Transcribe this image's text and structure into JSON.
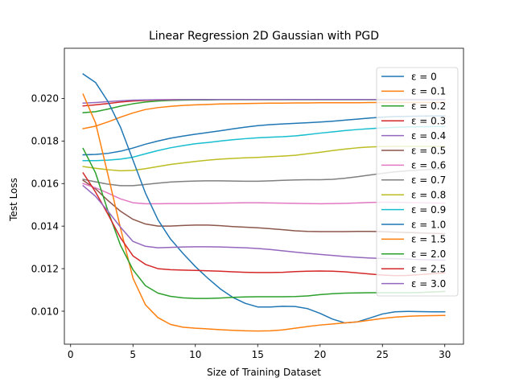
{
  "chart_data": {
    "type": "line",
    "title": "Linear Regression 2D Gaussian with PGD",
    "xlabel": "Size of Training Dataset",
    "ylabel": "Test Loss",
    "xlim": [
      -0.5,
      31.5
    ],
    "ylim": [
      0.00845,
      0.02236
    ],
    "xticks": [
      0,
      5,
      10,
      15,
      20,
      25,
      30
    ],
    "xtick_labels": [
      "0",
      "5",
      "10",
      "15",
      "20",
      "25",
      "30"
    ],
    "yticks": [
      0.01,
      0.012,
      0.014,
      0.016,
      0.018,
      0.02
    ],
    "ytick_labels": [
      "0.010",
      "0.012",
      "0.014",
      "0.016",
      "0.018",
      "0.020"
    ],
    "grid": false,
    "legend_position": "right",
    "x": [
      1,
      2,
      3,
      4,
      5,
      6,
      7,
      8,
      9,
      10,
      11,
      12,
      13,
      14,
      15,
      16,
      17,
      18,
      19,
      20,
      21,
      22,
      23,
      24,
      25,
      26,
      27,
      28,
      29,
      30
    ],
    "series": [
      {
        "name": "ε = 0",
        "color": "#1f77b4",
        "values": [
          0.01735,
          0.01737,
          0.01742,
          0.01752,
          0.01767,
          0.01785,
          0.018,
          0.01813,
          0.01823,
          0.01832,
          0.0184,
          0.01848,
          0.01857,
          0.01865,
          0.01872,
          0.01877,
          0.0188,
          0.01883,
          0.01886,
          0.01889,
          0.01893,
          0.01898,
          0.01903,
          0.01908,
          0.01912,
          0.01915,
          0.01916,
          0.01917,
          0.01918,
          0.01918
        ]
      },
      {
        "name": "ε = 0.1",
        "color": "#ff7f0e",
        "values": [
          0.01858,
          0.0187,
          0.0189,
          0.01912,
          0.01932,
          0.01948,
          0.01957,
          0.01963,
          0.01967,
          0.0197,
          0.01972,
          0.01974,
          0.01975,
          0.01976,
          0.01977,
          0.01978,
          0.01978,
          0.01979,
          0.01979,
          0.0198,
          0.0198,
          0.0198,
          0.0198,
          0.01981,
          0.01981,
          0.01981,
          0.01981,
          0.01981,
          0.01981,
          0.01982
        ]
      },
      {
        "name": "ε = 0.2",
        "color": "#2ca02c",
        "values": [
          0.01933,
          0.01938,
          0.0195,
          0.01964,
          0.01975,
          0.01983,
          0.01988,
          0.01991,
          0.01992,
          0.01993,
          0.01993,
          0.01994,
          0.01994,
          0.01994,
          0.01994,
          0.01994,
          0.01994,
          0.01994,
          0.01994,
          0.01994,
          0.01994,
          0.01994,
          0.01994,
          0.01994,
          0.01994,
          0.01994,
          0.01994,
          0.01994,
          0.01994,
          0.01994
        ]
      },
      {
        "name": "ε = 0.3",
        "color": "#d62728",
        "values": [
          0.01965,
          0.0197,
          0.01976,
          0.01983,
          0.01988,
          0.01991,
          0.01993,
          0.01994,
          0.01995,
          0.01995,
          0.01995,
          0.01995,
          0.01995,
          0.01995,
          0.01995,
          0.01995,
          0.01995,
          0.01995,
          0.01995,
          0.01995,
          0.01995,
          0.01995,
          0.01995,
          0.01995,
          0.01995,
          0.01995,
          0.01995,
          0.01995,
          0.01995,
          0.01995
        ]
      },
      {
        "name": "ε = 0.4",
        "color": "#9467bd",
        "values": [
          0.01978,
          0.01981,
          0.01985,
          0.01989,
          0.01992,
          0.01993,
          0.01994,
          0.01994,
          0.01995,
          0.01995,
          0.01995,
          0.01995,
          0.01995,
          0.01995,
          0.01995,
          0.01995,
          0.01995,
          0.01995,
          0.01995,
          0.01995,
          0.01995,
          0.01995,
          0.01995,
          0.01995,
          0.01995,
          0.01995,
          0.01995,
          0.01995,
          0.01995,
          0.01995
        ]
      },
      {
        "name": "ε = 0.5",
        "color": "#8c564b",
        "values": [
          0.01615,
          0.01575,
          0.0152,
          0.0147,
          0.01432,
          0.0141,
          0.014,
          0.014,
          0.01403,
          0.01405,
          0.01405,
          0.01402,
          0.01398,
          0.01395,
          0.01392,
          0.01388,
          0.01383,
          0.01378,
          0.01375,
          0.01374,
          0.01374,
          0.01374,
          0.01375,
          0.01375,
          0.01374,
          0.01372,
          0.0137,
          0.01368,
          0.01366,
          0.01365
        ]
      },
      {
        "name": "ε = 0.6",
        "color": "#e377c2",
        "values": [
          0.016,
          0.0158,
          0.01555,
          0.01528,
          0.0151,
          0.01505,
          0.01505,
          0.01506,
          0.01506,
          0.01506,
          0.01507,
          0.01508,
          0.01509,
          0.0151,
          0.0151,
          0.01509,
          0.01508,
          0.01507,
          0.01506,
          0.01505,
          0.01506,
          0.01507,
          0.01509,
          0.01511,
          0.01512,
          0.01512,
          0.01511,
          0.0151,
          0.01509,
          0.01508
        ]
      },
      {
        "name": "ε = 0.7",
        "color": "#7f7f7f",
        "values": [
          0.0162,
          0.01608,
          0.01597,
          0.0159,
          0.0159,
          0.01596,
          0.01602,
          0.01607,
          0.0161,
          0.01612,
          0.01613,
          0.01613,
          0.01612,
          0.01611,
          0.01611,
          0.01613,
          0.01615,
          0.01617,
          0.01618,
          0.01618,
          0.0162,
          0.01625,
          0.01632,
          0.0164,
          0.01648,
          0.01655,
          0.0166,
          0.01664,
          0.01667,
          0.01668
        ]
      },
      {
        "name": "ε = 0.8",
        "color": "#bcbd22",
        "values": [
          0.0168,
          0.01672,
          0.01665,
          0.0166,
          0.01662,
          0.0167,
          0.0168,
          0.0169,
          0.01697,
          0.01704,
          0.0171,
          0.01715,
          0.01718,
          0.01721,
          0.01723,
          0.01726,
          0.01729,
          0.01733,
          0.0174,
          0.01747,
          0.01755,
          0.01762,
          0.01768,
          0.01772,
          0.01774,
          0.01775,
          0.01775,
          0.01775,
          0.01775,
          0.01775
        ]
      },
      {
        "name": "ε = 0.9",
        "color": "#17becf",
        "values": [
          0.01708,
          0.01708,
          0.0171,
          0.01715,
          0.01724,
          0.0174,
          0.01755,
          0.01768,
          0.01778,
          0.01787,
          0.01793,
          0.018,
          0.01806,
          0.01811,
          0.01815,
          0.01818,
          0.0182,
          0.01824,
          0.0183,
          0.01837,
          0.01843,
          0.01849,
          0.01854,
          0.01858,
          0.01862,
          0.01864,
          0.01866,
          0.01867,
          0.01868,
          0.01868
        ]
      },
      {
        "name": "ε = 1.0",
        "color": "#1f77b4",
        "values": [
          0.02115,
          0.02075,
          0.01985,
          0.01865,
          0.0171,
          0.01555,
          0.0143,
          0.0134,
          0.01272,
          0.0121,
          0.01155,
          0.01105,
          0.01065,
          0.01037,
          0.0102,
          0.0102,
          0.01023,
          0.01022,
          0.01012,
          0.0099,
          0.00963,
          0.00945,
          0.0095,
          0.00968,
          0.00987,
          0.00997,
          0.00999,
          0.00998,
          0.00997,
          0.00997
        ]
      },
      {
        "name": "ε = 1.5",
        "color": "#ff7f0e",
        "values": [
          0.0202,
          0.01885,
          0.0164,
          0.0139,
          0.01155,
          0.0103,
          0.0097,
          0.00938,
          0.00925,
          0.0092,
          0.00917,
          0.00913,
          0.0091,
          0.00908,
          0.00907,
          0.00908,
          0.00912,
          0.0092,
          0.00928,
          0.00935,
          0.0094,
          0.00945,
          0.0095,
          0.00958,
          0.00966,
          0.00972,
          0.00976,
          0.00978,
          0.00979,
          0.0098
        ]
      },
      {
        "name": "ε = 2.0",
        "color": "#2ca02c",
        "values": [
          0.01765,
          0.0165,
          0.0147,
          0.0131,
          0.01195,
          0.0112,
          0.01085,
          0.0107,
          0.01063,
          0.0106,
          0.0106,
          0.01062,
          0.01065,
          0.01067,
          0.01068,
          0.01068,
          0.01068,
          0.01069,
          0.01072,
          0.01078,
          0.01082,
          0.01085,
          0.01086,
          0.01087,
          0.01087,
          0.01087,
          0.01087,
          0.01088,
          0.0109,
          0.01093
        ]
      },
      {
        "name": "ε = 2.5",
        "color": "#d62728",
        "values": [
          0.0165,
          0.0156,
          0.01455,
          0.01345,
          0.0126,
          0.0122,
          0.012,
          0.01195,
          0.01193,
          0.01192,
          0.0119,
          0.01188,
          0.01185,
          0.01183,
          0.01182,
          0.01182,
          0.01183,
          0.01186,
          0.01188,
          0.01189,
          0.01188,
          0.01185,
          0.0118,
          0.01175,
          0.0117,
          0.01167,
          0.01168,
          0.01172,
          0.01176,
          0.0118
        ]
      },
      {
        "name": "ε = 3.0",
        "color": "#9467bd",
        "values": [
          0.0159,
          0.0154,
          0.0147,
          0.01395,
          0.01328,
          0.01305,
          0.01298,
          0.013,
          0.01302,
          0.01303,
          0.01303,
          0.01302,
          0.013,
          0.01298,
          0.01295,
          0.0129,
          0.01284,
          0.01278,
          0.01272,
          0.01267,
          0.01262,
          0.01257,
          0.01253,
          0.0125,
          0.01248,
          0.01247,
          0.01245,
          0.01243,
          0.01241,
          0.0124
        ]
      }
    ]
  }
}
